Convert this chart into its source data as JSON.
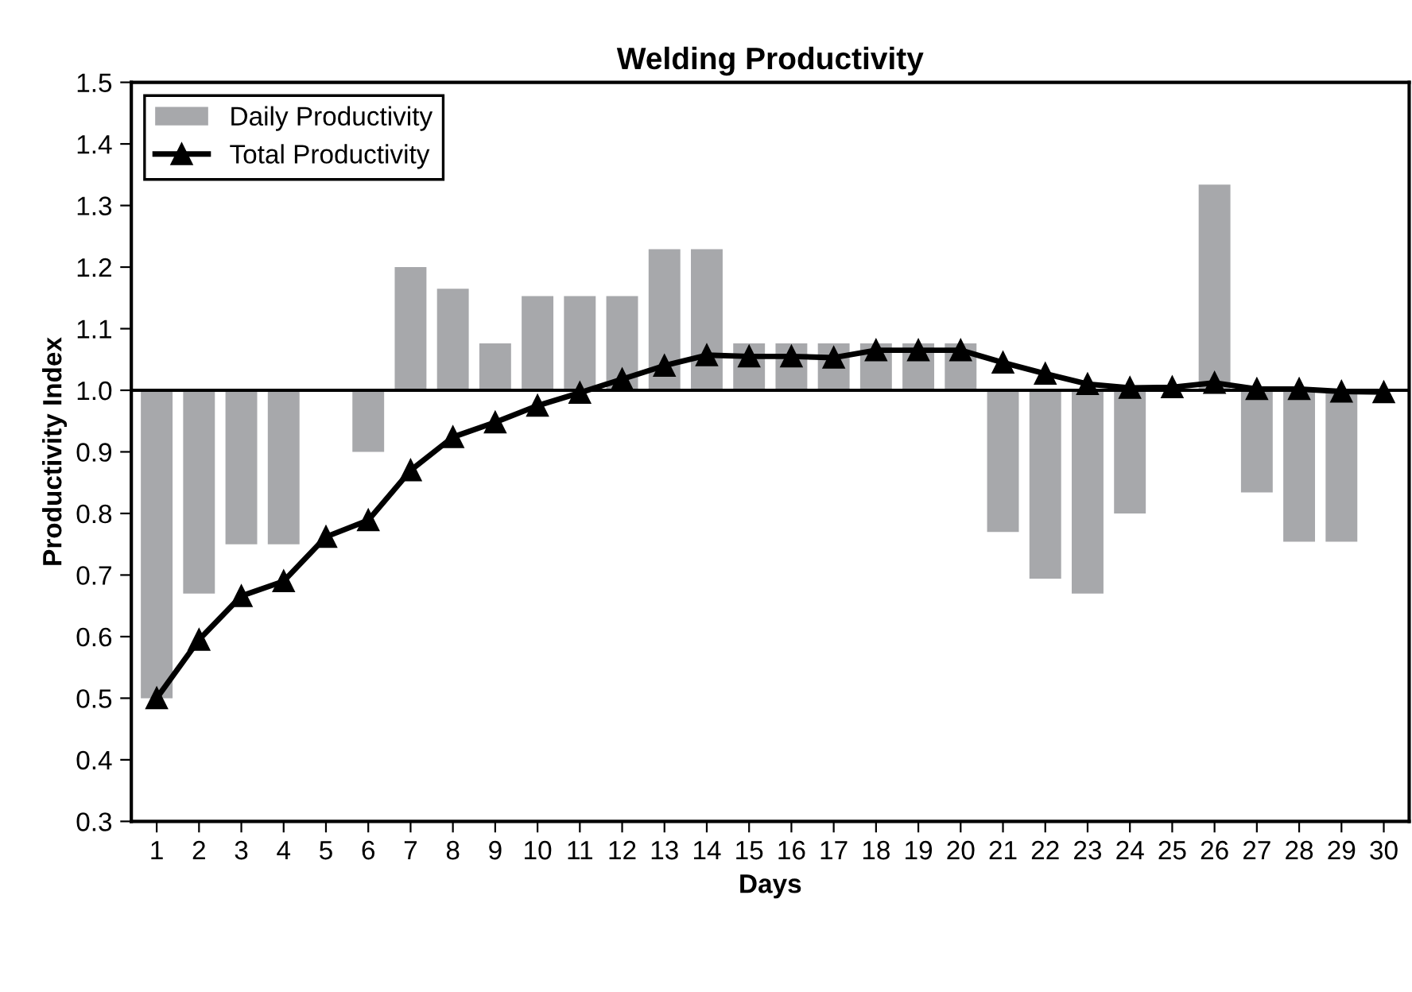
{
  "chart_data": {
    "type": "bar",
    "title": "Welding Productivity",
    "xlabel": "Days",
    "ylabel": "Productivity Index",
    "categories": [
      "1",
      "2",
      "3",
      "4",
      "5",
      "6",
      "7",
      "8",
      "9",
      "10",
      "11",
      "12",
      "13",
      "14",
      "15",
      "16",
      "17",
      "18",
      "19",
      "20",
      "21",
      "22",
      "23",
      "24",
      "25",
      "26",
      "27",
      "28",
      "29",
      "30"
    ],
    "series": [
      {
        "name": "Daily Productivity",
        "color": "#a7a8ab",
        "base": [
          1,
          1,
          1,
          1,
          null,
          1,
          1,
          1,
          1,
          1,
          1,
          1,
          1,
          1,
          1,
          1,
          1,
          1,
          1,
          1,
          1,
          1,
          1,
          1,
          null,
          1,
          1,
          1,
          1,
          null
        ],
        "values": [
          -0.5,
          -0.33,
          -0.25,
          -0.25,
          null,
          -0.1,
          0.2,
          0.165,
          0.076,
          0.153,
          0.153,
          0.153,
          0.229,
          0.229,
          0.076,
          0.076,
          0.076,
          0.076,
          0.076,
          0.076,
          -0.23,
          -0.306,
          -0.33,
          -0.2,
          null,
          0.334,
          -0.166,
          -0.246,
          -0.246,
          null
        ]
      },
      {
        "name": "Total Productivity",
        "type": "line",
        "color": "#000000",
        "marker": "triangle",
        "line_style": "solid",
        "values": [
          0.5,
          0.595,
          0.666,
          0.69,
          0.762,
          0.789,
          0.87,
          0.924,
          0.948,
          0.975,
          0.996,
          1.018,
          1.04,
          1.057,
          1.055,
          1.055,
          1.053,
          1.065,
          1.065,
          1.065,
          1.045,
          1.027,
          1.01,
          1.004,
          1.005,
          1.012,
          1.002,
          1.002,
          0.998,
          0.997
        ]
      }
    ],
    "ylim": [
      0.3,
      1.5
    ],
    "yticks": [
      {
        "value": 0.3,
        "label": "0.3"
      },
      {
        "value": 0.4,
        "label": "0.4"
      },
      {
        "value": 0.5,
        "label": "0.5"
      },
      {
        "value": 0.6,
        "label": "0.6"
      },
      {
        "value": 0.7,
        "label": "0.7"
      },
      {
        "value": 0.8,
        "label": "0.8"
      },
      {
        "value": 0.9,
        "label": "0.9"
      },
      {
        "value": 1.0,
        "label": "1.0"
      },
      {
        "value": 1.1,
        "label": "1.1"
      },
      {
        "value": 1.2,
        "label": "1.2"
      },
      {
        "value": 1.3,
        "label": "1.3"
      },
      {
        "value": 1.4,
        "label": "1.4"
      },
      {
        "value": 1.5,
        "label": "1.5"
      }
    ],
    "ref_lines": [
      {
        "axis": "y",
        "value": 1.0,
        "color": "#000000"
      }
    ],
    "grid": false,
    "legend": "top left"
  }
}
